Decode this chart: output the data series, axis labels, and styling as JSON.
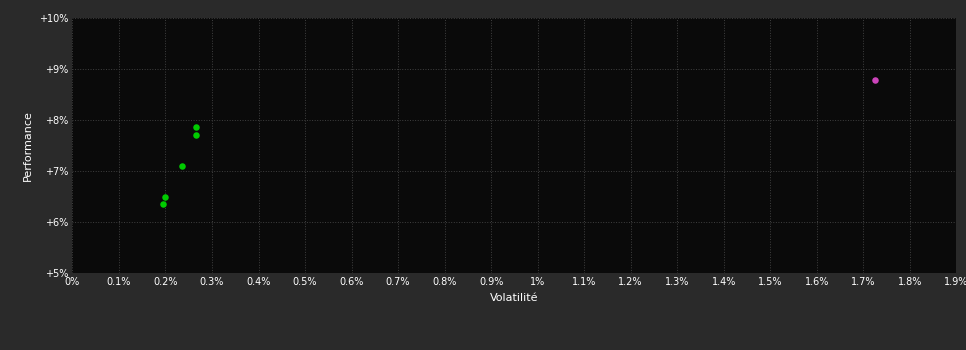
{
  "background_color": "#2a2a2a",
  "plot_bg_color": "#0a0a0a",
  "grid_color": "#404040",
  "text_color": "#ffffff",
  "xlabel": "Volatilité",
  "ylabel": "Performance",
  "xlim": [
    0.0,
    0.019
  ],
  "ylim": [
    0.05,
    0.1
  ],
  "x_ticks": [
    0.0,
    0.001,
    0.002,
    0.003,
    0.004,
    0.005,
    0.006,
    0.007,
    0.008,
    0.009,
    0.01,
    0.011,
    0.012,
    0.013,
    0.014,
    0.015,
    0.016,
    0.017,
    0.018,
    0.019
  ],
  "y_ticks": [
    0.05,
    0.06,
    0.07,
    0.08,
    0.09,
    0.1
  ],
  "green_points": [
    [
      0.00195,
      0.0635
    ],
    [
      0.002,
      0.0648
    ],
    [
      0.00235,
      0.071
    ],
    [
      0.00265,
      0.077
    ],
    [
      0.00265,
      0.0785
    ]
  ],
  "magenta_points": [
    [
      0.01725,
      0.0878
    ]
  ],
  "green_color": "#00cc00",
  "magenta_color": "#cc44bb",
  "dot_size": 22,
  "font_size_labels": 8,
  "font_size_ticks": 7
}
